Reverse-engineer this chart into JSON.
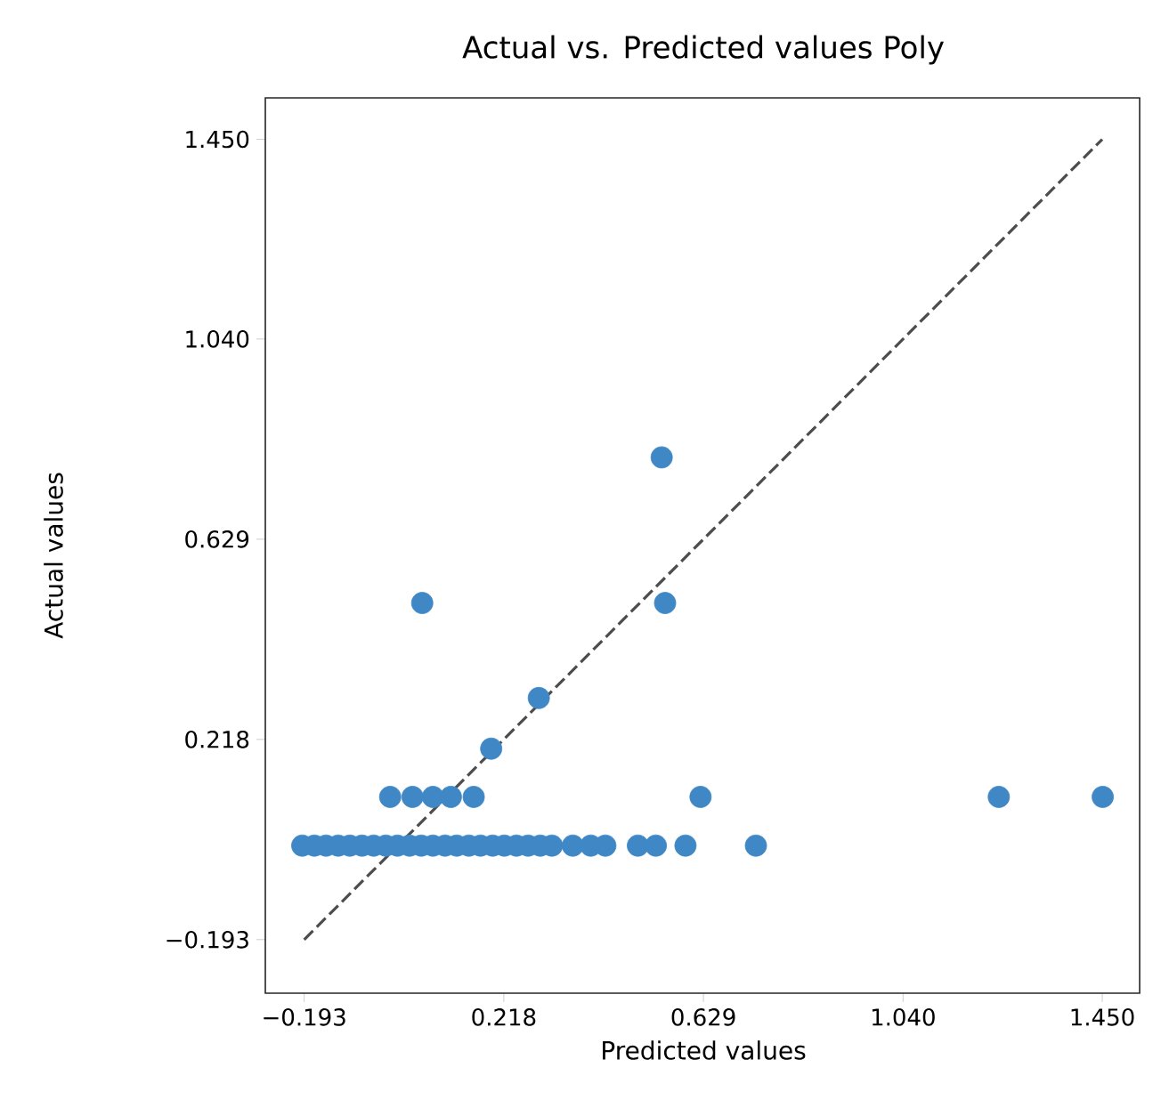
{
  "chart_data": {
    "type": "scatter",
    "title": "Actual vs. Predicted values Poly",
    "xlabel": "Predicted values",
    "ylabel": "Actual values",
    "xlim": [
      -0.273,
      1.527
    ],
    "ylim": [
      -0.303,
      1.535
    ],
    "xticks": [
      {
        "value": -0.193,
        "label": "−0.193"
      },
      {
        "value": 0.218,
        "label": "0.218"
      },
      {
        "value": 0.629,
        "label": "0.629"
      },
      {
        "value": 1.04,
        "label": "1.040"
      },
      {
        "value": 1.45,
        "label": "1.450"
      }
    ],
    "yticks": [
      {
        "value": -0.193,
        "label": "−0.193"
      },
      {
        "value": 0.218,
        "label": "0.218"
      },
      {
        "value": 0.629,
        "label": "0.629"
      },
      {
        "value": 1.04,
        "label": "1.040"
      },
      {
        "value": 1.45,
        "label": "1.450"
      }
    ],
    "grid": false,
    "series": [
      {
        "color": "#3f88c5",
        "marker": "circle",
        "x": [
          -0.197,
          -0.172,
          -0.148,
          -0.123,
          -0.099,
          -0.074,
          -0.05,
          -0.025,
          -0.001,
          0.024,
          0.048,
          0.072,
          0.097,
          0.121,
          0.146,
          0.17,
          0.195,
          0.219,
          0.244,
          0.268,
          0.293,
          0.317,
          0.36,
          0.397,
          0.427,
          0.494,
          0.531,
          0.592,
          0.737,
          -0.016,
          0.03,
          0.072,
          0.109,
          0.156,
          0.623,
          1.237,
          1.451,
          0.192,
          0.29,
          0.05,
          0.55,
          0.543
        ],
        "values": [
          0.0,
          0.0,
          0.0,
          0.0,
          0.0,
          0.0,
          0.0,
          0.0,
          0.0,
          0.0,
          0.0,
          0.0,
          0.0,
          0.0,
          0.0,
          0.0,
          0.0,
          0.0,
          0.0,
          0.0,
          0.0,
          0.0,
          0.0,
          0.0,
          0.0,
          0.0,
          0.0,
          0.0,
          0.0,
          0.1,
          0.1,
          0.1,
          0.1,
          0.1,
          0.1,
          0.1,
          0.1,
          0.199,
          0.303,
          0.498,
          0.498,
          0.797
        ]
      },
      {
        "type": "line",
        "color": "#4d4d4d",
        "line_style": "dashed",
        "marker": "none",
        "x": [
          -0.193,
          1.45
        ],
        "values": [
          -0.193,
          1.45
        ]
      }
    ]
  }
}
